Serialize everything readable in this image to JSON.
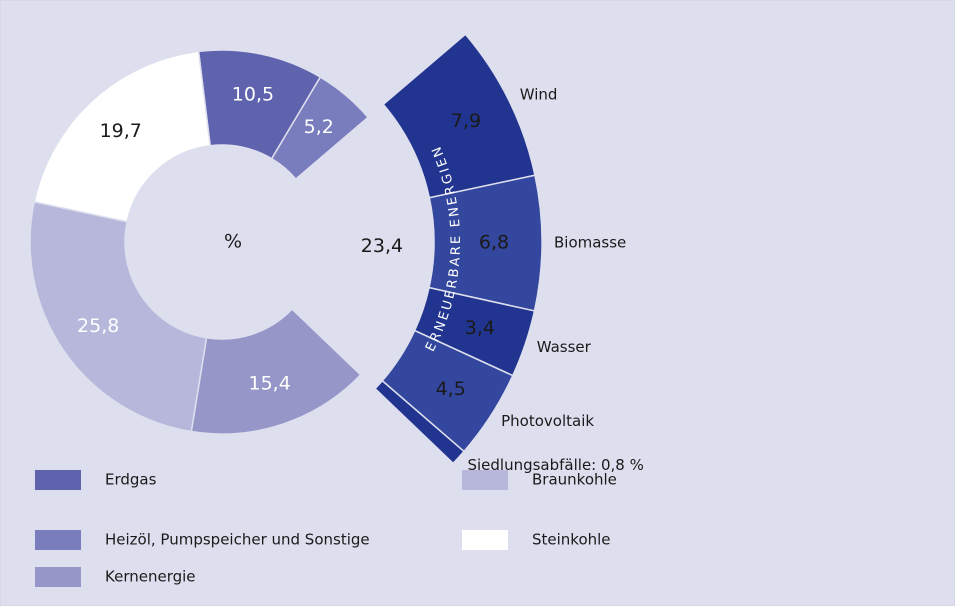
{
  "chart_data": {
    "type": "donut",
    "center_label": "%",
    "ring": [
      {
        "name": "Erdgas",
        "color": "#5f62ad",
        "value": 10.5,
        "value_label": "10,5",
        "text_color": "#ffffff"
      },
      {
        "name": "Heizöl, Pumpspeicher und Sonstige",
        "color": "#7a7dbd",
        "value": 5.2,
        "value_label": "5,2",
        "text_color": "#ffffff"
      },
      {
        "name": "ERNEUERBARE ENERGIEN",
        "value": 23.4,
        "value_label": "23,4",
        "text_color": "#1a1a1a",
        "parts": [
          {
            "name": "Wind",
            "color": "#21348f",
            "value": 7.9,
            "value_label": "7,9"
          },
          {
            "name": "Biomasse",
            "color": "#34479e",
            "value": 6.8,
            "value_label": "6,8"
          },
          {
            "name": "Wasser",
            "color": "#21348f",
            "value": 3.4,
            "value_label": "3,4"
          },
          {
            "name": "Photovoltaik",
            "color": "#34479e",
            "value": 4.5,
            "value_label": "4,5"
          },
          {
            "name": "Siedlungsabfälle: 0,8 %",
            "color": "#21348f",
            "value": 0.8,
            "value_label": null
          }
        ]
      },
      {
        "name": "Kernenergie",
        "color": "#9697c8",
        "value": 15.4,
        "value_label": "15,4",
        "text_color": "#ffffff"
      },
      {
        "name": "Braunkohle",
        "color": "#b6b7db",
        "value": 25.8,
        "value_label": "25,8",
        "text_color": "#ffffff"
      },
      {
        "name": "Steinkohle",
        "color": "#ffffff",
        "value": 19.7,
        "value_label": "19,7",
        "text_color": "#1a1a1a"
      }
    ]
  }
}
